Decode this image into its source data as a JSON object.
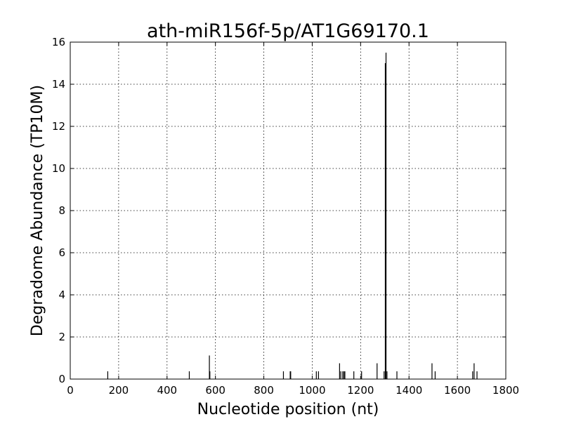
{
  "chart_data": {
    "type": "bar",
    "title": "ath-miR156f-5p/AT1G69170.1",
    "xlabel": "Nucleotide position (nt)",
    "ylabel": "Degradome Abundance (TP10M)",
    "xlim": [
      0,
      1800
    ],
    "ylim": [
      0,
      16
    ],
    "xticks": [
      0,
      200,
      400,
      600,
      800,
      1000,
      1200,
      1400,
      1600,
      1800
    ],
    "yticks": [
      0,
      2,
      4,
      6,
      8,
      10,
      12,
      14,
      16
    ],
    "grid": true,
    "series": [
      {
        "color": "#000000",
        "points": [
          {
            "x": 155,
            "y": 0.37
          },
          {
            "x": 492,
            "y": 0.37
          },
          {
            "x": 575,
            "y": 1.12
          },
          {
            "x": 577,
            "y": 0.37
          },
          {
            "x": 881,
            "y": 0.37
          },
          {
            "x": 909,
            "y": 0.37
          },
          {
            "x": 911,
            "y": 0.37
          },
          {
            "x": 1017,
            "y": 0.37
          },
          {
            "x": 1026,
            "y": 0.37
          },
          {
            "x": 1113,
            "y": 0.75
          },
          {
            "x": 1118,
            "y": 0.37
          },
          {
            "x": 1126,
            "y": 0.37
          },
          {
            "x": 1131,
            "y": 0.37
          },
          {
            "x": 1135,
            "y": 0.37
          },
          {
            "x": 1172,
            "y": 0.37
          },
          {
            "x": 1204,
            "y": 0.37
          },
          {
            "x": 1268,
            "y": 0.75
          },
          {
            "x": 1297,
            "y": 0.37
          },
          {
            "x": 1305,
            "y": 15.5
          },
          {
            "x": 1309,
            "y": 0.37
          },
          {
            "x": 1350,
            "y": 0.37
          },
          {
            "x": 1495,
            "y": 0.75
          },
          {
            "x": 1508,
            "y": 0.37
          },
          {
            "x": 1663,
            "y": 0.37
          },
          {
            "x": 1669,
            "y": 0.75
          },
          {
            "x": 1681,
            "y": 0.37
          }
        ]
      },
      {
        "color": "#d62728",
        "points": [
          {
            "x": 1302,
            "y": 15.0
          }
        ]
      }
    ]
  }
}
